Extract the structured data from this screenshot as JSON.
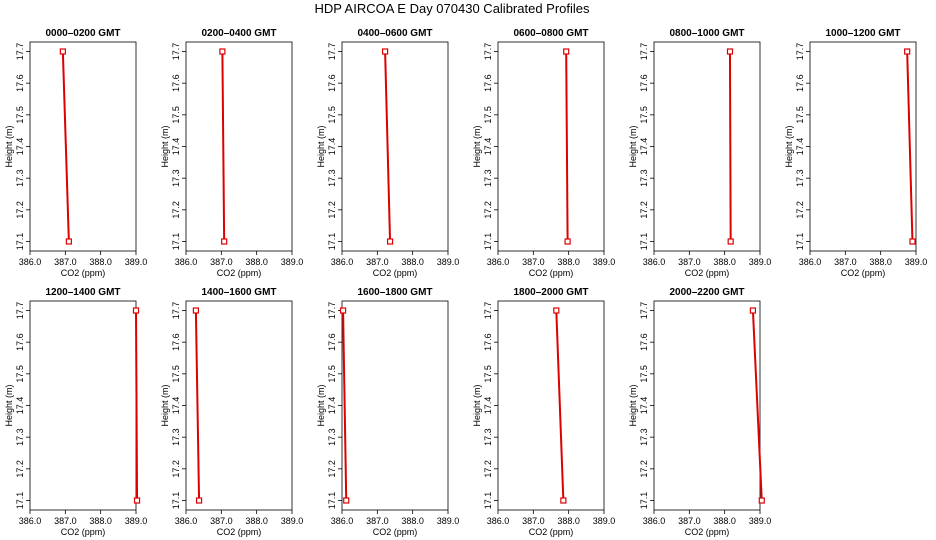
{
  "figure_title": "HDP AIRCOA E  Day 070430  Calibrated Profiles",
  "chart_data": [
    {
      "type": "line",
      "title": "0000–0200 GMT",
      "xlabel": "CO2 (ppm)",
      "ylabel": "Height (m)",
      "xlim": [
        386.0,
        389.0
      ],
      "ylim": [
        17.07,
        17.73
      ],
      "x_ticks": [
        "386.0",
        "387.0",
        "388.0",
        "389.0"
      ],
      "y_ticks": [
        "17.1",
        "17.2",
        "17.3",
        "17.4",
        "17.5",
        "17.6",
        "17.7"
      ],
      "series": [
        {
          "x": [
            386.93,
            387.1
          ],
          "y": [
            17.7,
            17.1
          ]
        }
      ],
      "color": "#dd0000"
    },
    {
      "type": "line",
      "title": "0200–0400 GMT",
      "xlabel": "CO2 (ppm)",
      "ylabel": "Height (m)",
      "xlim": [
        386.0,
        389.0
      ],
      "ylim": [
        17.07,
        17.73
      ],
      "x_ticks": [
        "386.0",
        "387.0",
        "388.0",
        "389.0"
      ],
      "y_ticks": [
        "17.1",
        "17.2",
        "17.3",
        "17.4",
        "17.5",
        "17.6",
        "17.7"
      ],
      "series": [
        {
          "x": [
            387.03,
            387.08
          ],
          "y": [
            17.7,
            17.1
          ]
        }
      ],
      "color": "#dd0000"
    },
    {
      "type": "line",
      "title": "0400–0600 GMT",
      "xlabel": "CO2 (ppm)",
      "ylabel": "Height (m)",
      "xlim": [
        386.0,
        389.0
      ],
      "ylim": [
        17.07,
        17.73
      ],
      "x_ticks": [
        "386.0",
        "387.0",
        "388.0",
        "389.0"
      ],
      "y_ticks": [
        "17.1",
        "17.2",
        "17.3",
        "17.4",
        "17.5",
        "17.6",
        "17.7"
      ],
      "series": [
        {
          "x": [
            387.22,
            387.36
          ],
          "y": [
            17.7,
            17.1
          ]
        }
      ],
      "color": "#dd0000"
    },
    {
      "type": "line",
      "title": "0600–0800 GMT",
      "xlabel": "CO2 (ppm)",
      "ylabel": "Height (m)",
      "xlim": [
        386.0,
        389.0
      ],
      "ylim": [
        17.07,
        17.73
      ],
      "x_ticks": [
        "386.0",
        "387.0",
        "388.0",
        "389.0"
      ],
      "y_ticks": [
        "17.1",
        "17.2",
        "17.3",
        "17.4",
        "17.5",
        "17.6",
        "17.7"
      ],
      "series": [
        {
          "x": [
            387.93,
            387.97
          ],
          "y": [
            17.7,
            17.1
          ]
        }
      ],
      "color": "#dd0000"
    },
    {
      "type": "line",
      "title": "0800–1000 GMT",
      "xlabel": "CO2 (ppm)",
      "ylabel": "Height (m)",
      "xlim": [
        386.0,
        389.0
      ],
      "ylim": [
        17.07,
        17.73
      ],
      "x_ticks": [
        "386.0",
        "387.0",
        "388.0",
        "389.0"
      ],
      "y_ticks": [
        "17.1",
        "17.2",
        "17.3",
        "17.4",
        "17.5",
        "17.6",
        "17.7"
      ],
      "series": [
        {
          "x": [
            388.15,
            388.17
          ],
          "y": [
            17.7,
            17.1
          ]
        }
      ],
      "color": "#dd0000"
    },
    {
      "type": "line",
      "title": "1000–1200 GMT",
      "xlabel": "CO2 (ppm)",
      "ylabel": "Height (m)",
      "xlim": [
        386.0,
        389.0
      ],
      "ylim": [
        17.07,
        17.73
      ],
      "x_ticks": [
        "386.0",
        "387.0",
        "388.0",
        "389.0"
      ],
      "y_ticks": [
        "17.1",
        "17.2",
        "17.3",
        "17.4",
        "17.5",
        "17.6",
        "17.7"
      ],
      "series": [
        {
          "x": [
            388.75,
            388.9
          ],
          "y": [
            17.7,
            17.1
          ]
        }
      ],
      "color": "#dd0000"
    },
    {
      "type": "line",
      "title": "1200–1400 GMT",
      "xlabel": "CO2 (ppm)",
      "ylabel": "Height (m)",
      "xlim": [
        386.0,
        389.0
      ],
      "ylim": [
        17.07,
        17.73
      ],
      "x_ticks": [
        "386.0",
        "387.0",
        "388.0",
        "389.0"
      ],
      "y_ticks": [
        "17.1",
        "17.2",
        "17.3",
        "17.4",
        "17.5",
        "17.6",
        "17.7"
      ],
      "series": [
        {
          "x": [
            389.0,
            389.03
          ],
          "y": [
            17.7,
            17.1
          ]
        }
      ],
      "color": "#dd0000"
    },
    {
      "type": "line",
      "title": "1400–1600 GMT",
      "xlabel": "CO2 (ppm)",
      "ylabel": "Height (m)",
      "xlim": [
        386.0,
        389.0
      ],
      "ylim": [
        17.07,
        17.73
      ],
      "x_ticks": [
        "386.0",
        "387.0",
        "388.0",
        "389.0"
      ],
      "y_ticks": [
        "17.1",
        "17.2",
        "17.3",
        "17.4",
        "17.5",
        "17.6",
        "17.7"
      ],
      "series": [
        {
          "x": [
            386.28,
            386.37
          ],
          "y": [
            17.7,
            17.1
          ]
        }
      ],
      "color": "#dd0000"
    },
    {
      "type": "line",
      "title": "1600–1800 GMT",
      "xlabel": "CO2 (ppm)",
      "ylabel": "Height (m)",
      "xlim": [
        386.0,
        389.0
      ],
      "ylim": [
        17.07,
        17.73
      ],
      "x_ticks": [
        "386.0",
        "387.0",
        "388.0",
        "389.0"
      ],
      "y_ticks": [
        "17.1",
        "17.2",
        "17.3",
        "17.4",
        "17.5",
        "17.6",
        "17.7"
      ],
      "series": [
        {
          "x": [
            386.03,
            386.12
          ],
          "y": [
            17.7,
            17.1
          ]
        }
      ],
      "color": "#dd0000"
    },
    {
      "type": "line",
      "title": "1800–2000 GMT",
      "xlabel": "CO2 (ppm)",
      "ylabel": "Height (m)",
      "xlim": [
        386.0,
        389.0
      ],
      "ylim": [
        17.07,
        17.73
      ],
      "x_ticks": [
        "386.0",
        "387.0",
        "388.0",
        "389.0"
      ],
      "y_ticks": [
        "17.1",
        "17.2",
        "17.3",
        "17.4",
        "17.5",
        "17.6",
        "17.7"
      ],
      "series": [
        {
          "x": [
            387.65,
            387.85
          ],
          "y": [
            17.7,
            17.1
          ]
        }
      ],
      "color": "#dd0000"
    },
    {
      "type": "line",
      "title": "2000–2200 GMT",
      "xlabel": "CO2 (ppm)",
      "ylabel": "Height (m)",
      "xlim": [
        386.0,
        389.0
      ],
      "ylim": [
        17.07,
        17.73
      ],
      "x_ticks": [
        "386.0",
        "387.0",
        "388.0",
        "389.0"
      ],
      "y_ticks": [
        "17.1",
        "17.2",
        "17.3",
        "17.4",
        "17.5",
        "17.6",
        "17.7"
      ],
      "series": [
        {
          "x": [
            388.8,
            389.05
          ],
          "y": [
            17.7,
            17.1
          ]
        }
      ],
      "color": "#dd0000"
    }
  ]
}
